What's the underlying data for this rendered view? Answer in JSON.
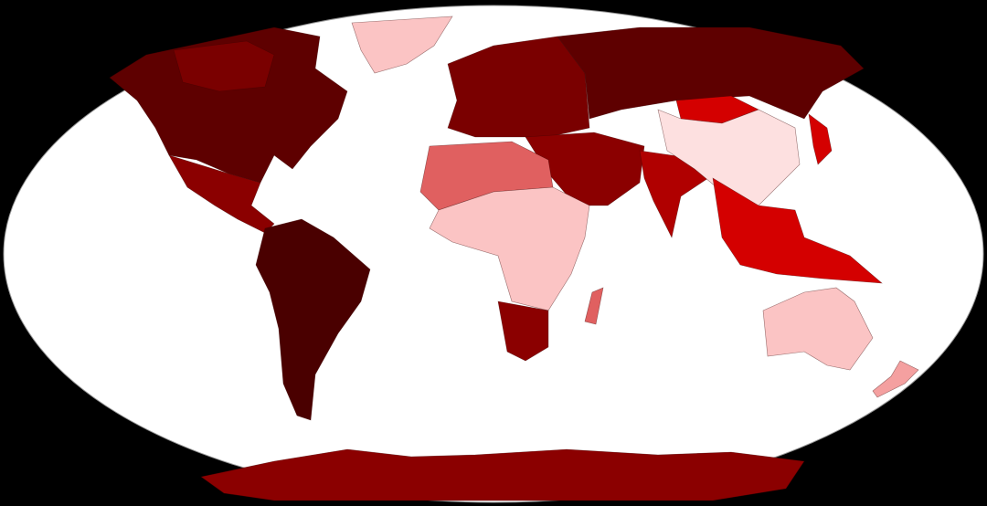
{
  "map": {
    "background": "#000000",
    "ocean": "#ffffff",
    "palette": {
      "darkest": "#4a0000",
      "very_dark": "#5e0000",
      "dark": "#7a0000",
      "deep_red": "#8b0000",
      "red": "#b00000",
      "bright_red": "#d40000",
      "medium": "#e06060",
      "light": "#f4a0a0",
      "very_light": "#fbc4c4",
      "palest": "#fde0e0",
      "no_data": "#d8d8d8"
    },
    "regions": [
      {
        "id": "north-america",
        "shade": "very_dark"
      },
      {
        "id": "canada-north",
        "shade": "dark"
      },
      {
        "id": "greenland",
        "shade": "very_light"
      },
      {
        "id": "central-america",
        "shade": "deep_red"
      },
      {
        "id": "south-america",
        "shade": "darkest"
      },
      {
        "id": "europe",
        "shade": "dark"
      },
      {
        "id": "russia",
        "shade": "very_dark"
      },
      {
        "id": "middle-east",
        "shade": "deep_red"
      },
      {
        "id": "north-africa",
        "shade": "medium"
      },
      {
        "id": "central-africa",
        "shade": "very_light"
      },
      {
        "id": "southern-africa",
        "shade": "deep_red"
      },
      {
        "id": "madagascar",
        "shade": "medium"
      },
      {
        "id": "india",
        "shade": "red"
      },
      {
        "id": "mongolia",
        "shade": "bright_red"
      },
      {
        "id": "china",
        "shade": "palest"
      },
      {
        "id": "southeast-asia",
        "shade": "bright_red"
      },
      {
        "id": "japan",
        "shade": "bright_red"
      },
      {
        "id": "australia",
        "shade": "very_light"
      },
      {
        "id": "new-zealand",
        "shade": "light"
      },
      {
        "id": "antarctica",
        "shade": "deep_red"
      }
    ]
  }
}
